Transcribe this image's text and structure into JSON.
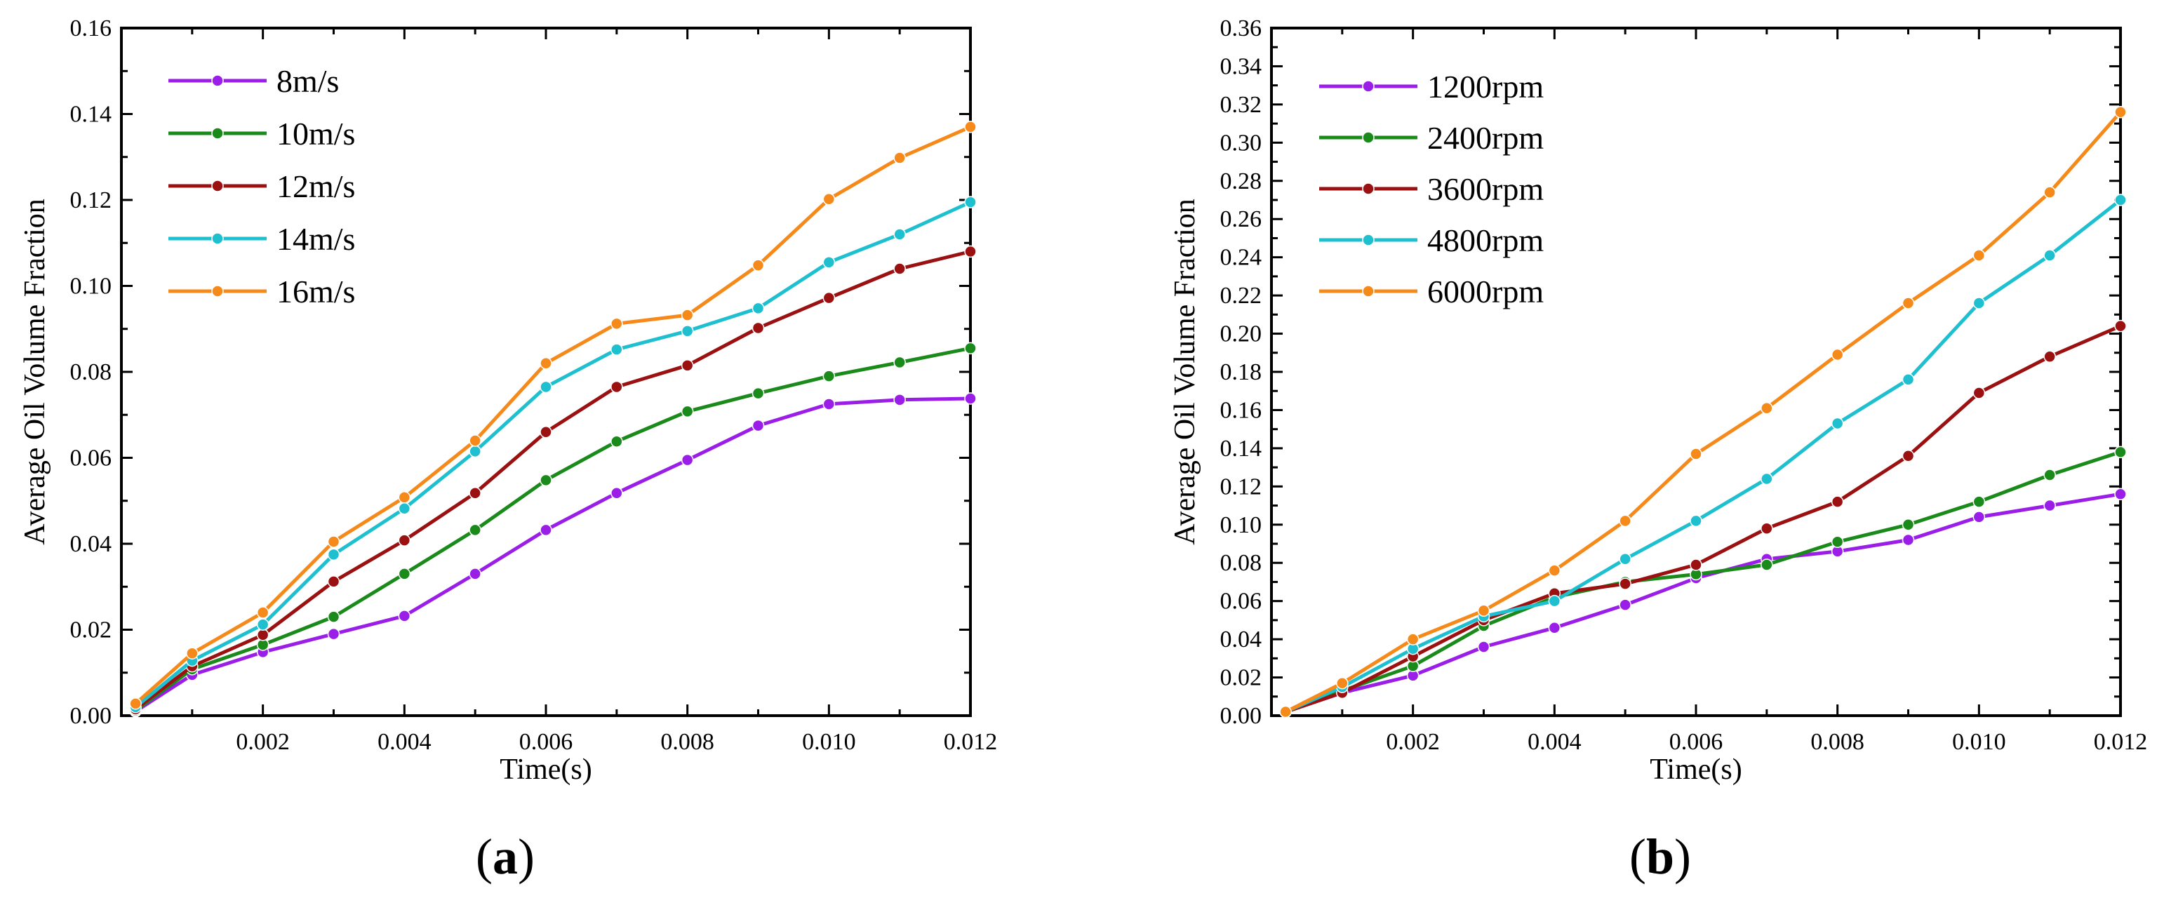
{
  "chart_data": [
    {
      "type": "line",
      "panel_label": "a",
      "title": "",
      "xlabel": "Time(s)",
      "ylabel": "Average Oil Volume Fraction",
      "xlim": [
        0,
        0.012
      ],
      "ylim": [
        0,
        0.16
      ],
      "xticks": [
        0.002,
        0.004,
        0.006,
        0.008,
        0.01,
        0.012
      ],
      "xtick_labels": [
        "0.002",
        "0.004",
        "0.006",
        "0.008",
        "0.010",
        "0.012"
      ],
      "yticks": [
        0,
        0.02,
        0.04,
        0.06,
        0.08,
        0.1,
        0.12,
        0.14,
        0.16
      ],
      "ytick_labels": [
        "0.00",
        "0.02",
        "0.04",
        "0.06",
        "0.08",
        "0.10",
        "0.12",
        "0.14",
        "0.16"
      ],
      "grid": false,
      "legend_position": "top-left",
      "x": [
        0.0002,
        0.001,
        0.002,
        0.003,
        0.004,
        0.005,
        0.006,
        0.007,
        0.008,
        0.009,
        0.01,
        0.011,
        0.012
      ],
      "series": [
        {
          "name": "8m/s",
          "color": "#9b1ee8",
          "values": [
            0.001,
            0.0095,
            0.0148,
            0.019,
            0.0232,
            0.033,
            0.0432,
            0.0518,
            0.0595,
            0.0675,
            0.0725,
            0.0735,
            0.0738
          ]
        },
        {
          "name": "10m/s",
          "color": "#1a8a1a",
          "values": [
            0.0012,
            0.0108,
            0.0165,
            0.023,
            0.033,
            0.0432,
            0.0548,
            0.0638,
            0.0708,
            0.075,
            0.079,
            0.0822,
            0.0855
          ]
        },
        {
          "name": "12m/s",
          "color": "#9b1010",
          "values": [
            0.0015,
            0.0115,
            0.0188,
            0.0312,
            0.0408,
            0.0518,
            0.066,
            0.0765,
            0.0815,
            0.0902,
            0.0972,
            0.104,
            0.108
          ]
        },
        {
          "name": "14m/s",
          "color": "#1ec0d0",
          "values": [
            0.002,
            0.0128,
            0.0212,
            0.0375,
            0.0482,
            0.0615,
            0.0765,
            0.0852,
            0.0895,
            0.0948,
            0.1055,
            0.112,
            0.1195
          ]
        },
        {
          "name": "16m/s",
          "color": "#f58a1a",
          "values": [
            0.0028,
            0.0145,
            0.024,
            0.0405,
            0.0508,
            0.064,
            0.082,
            0.0912,
            0.0932,
            0.1048,
            0.1202,
            0.1298,
            0.137
          ]
        }
      ]
    },
    {
      "type": "line",
      "panel_label": "b",
      "title": "",
      "xlabel": "Time(s)",
      "ylabel": "Average Oil Volume Fraction",
      "xlim": [
        0,
        0.012
      ],
      "ylim": [
        0,
        0.36
      ],
      "xticks": [
        0.002,
        0.004,
        0.006,
        0.008,
        0.01,
        0.012
      ],
      "xtick_labels": [
        "0.002",
        "0.004",
        "0.006",
        "0.008",
        "0.010",
        "0.012"
      ],
      "yticks": [
        0,
        0.02,
        0.04,
        0.06,
        0.08,
        0.1,
        0.12,
        0.14,
        0.16,
        0.18,
        0.2,
        0.22,
        0.24,
        0.26,
        0.28,
        0.3,
        0.32,
        0.34,
        0.36
      ],
      "ytick_labels": [
        "0.00",
        "0.02",
        "0.04",
        "0.06",
        "0.08",
        "0.10",
        "0.12",
        "0.14",
        "0.16",
        "0.18",
        "0.20",
        "0.22",
        "0.24",
        "0.26",
        "0.28",
        "0.30",
        "0.32",
        "0.34",
        "0.36"
      ],
      "grid": false,
      "legend_position": "top-left",
      "x": [
        0.0002,
        0.001,
        0.002,
        0.003,
        0.004,
        0.005,
        0.006,
        0.007,
        0.008,
        0.009,
        0.01,
        0.011,
        0.012
      ],
      "series": [
        {
          "name": "1200rpm",
          "color": "#9b1ee8",
          "values": [
            0.002,
            0.012,
            0.021,
            0.036,
            0.046,
            0.058,
            0.072,
            0.082,
            0.086,
            0.092,
            0.104,
            0.11,
            0.116
          ]
        },
        {
          "name": "2400rpm",
          "color": "#1a8a1a",
          "values": [
            0.002,
            0.013,
            0.026,
            0.047,
            0.062,
            0.07,
            0.074,
            0.079,
            0.091,
            0.1,
            0.112,
            0.126,
            0.138
          ]
        },
        {
          "name": "3600rpm",
          "color": "#9b1010",
          "values": [
            0.002,
            0.012,
            0.031,
            0.05,
            0.064,
            0.069,
            0.079,
            0.098,
            0.112,
            0.136,
            0.169,
            0.188,
            0.204
          ]
        },
        {
          "name": "4800rpm",
          "color": "#1ec0d0",
          "values": [
            0.002,
            0.015,
            0.035,
            0.052,
            0.06,
            0.082,
            0.102,
            0.124,
            0.153,
            0.176,
            0.216,
            0.241,
            0.27
          ]
        },
        {
          "name": "6000rpm",
          "color": "#f58a1a",
          "values": [
            0.002,
            0.017,
            0.04,
            0.055,
            0.076,
            0.102,
            0.137,
            0.161,
            0.189,
            0.216,
            0.241,
            0.274,
            0.316
          ]
        }
      ]
    }
  ]
}
